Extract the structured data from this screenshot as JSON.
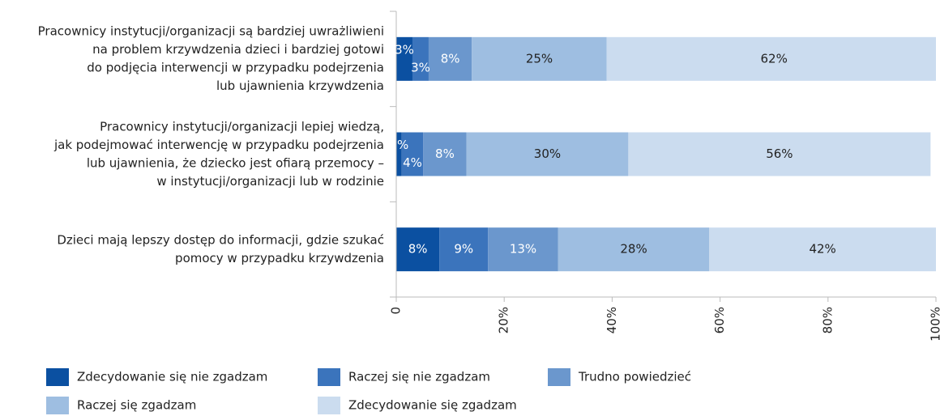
{
  "chart_data": {
    "type": "stacked_barh",
    "categories": [
      [
        "Pracownicy instytucji/organizacji są bardziej uwrażliwieni",
        "na problem krzywdzenia dzieci i bardziej gotowi",
        "do podjęcia interwencji w przypadku podejrzenia",
        "lub ujawnienia krzywdzenia"
      ],
      [
        "Pracownicy instytucji/organizacji lepiej wiedzą,",
        "jak podejmować interwencję w przypadku podejrzenia",
        "lub ujawnienia, że dziecko jest ofiarą przemocy –",
        "w instytucji/organizacji lub w rodzinie"
      ],
      [
        "Dzieci mają lepszy dostęp do informacji, gdzie szukać",
        "pomocy w przypadku krzywdzenia"
      ]
    ],
    "series": [
      {
        "name": "Zdecydowanie się nie zgadzam",
        "color": "#0b50a1",
        "values": [
          3,
          1,
          8
        ],
        "value_labels": [
          "3%",
          "1%",
          "8%"
        ]
      },
      {
        "name": "Raczej się nie zgadzam",
        "color": "#3b74bc",
        "values": [
          3,
          4,
          9
        ],
        "value_labels": [
          "3%",
          "4%",
          "9%"
        ]
      },
      {
        "name": "Trudno powiedzieć",
        "color": "#6b97cd",
        "values": [
          8,
          8,
          13
        ],
        "value_labels": [
          "8%",
          "8%",
          "13%"
        ]
      },
      {
        "name": "Raczej się zgadzam",
        "color": "#9ebee1",
        "values": [
          25,
          30,
          28
        ],
        "value_labels": [
          "25%",
          "30%",
          "28%"
        ]
      },
      {
        "name": "Zdecydowanie się zgadzam",
        "color": "#cbdcef",
        "values": [
          62,
          56,
          42
        ],
        "value_labels": [
          "62%",
          "56%",
          "42%"
        ]
      }
    ],
    "xlim": [
      0,
      100
    ],
    "xticks": [
      0,
      {
        "value": 20,
        "label": "20%"
      },
      {
        "value": 40,
        "label": "40%"
      },
      {
        "value": 60,
        "label": "60%"
      },
      {
        "value": 80,
        "label": "80%"
      },
      {
        "value": 100,
        "label": "100%"
      }
    ]
  }
}
